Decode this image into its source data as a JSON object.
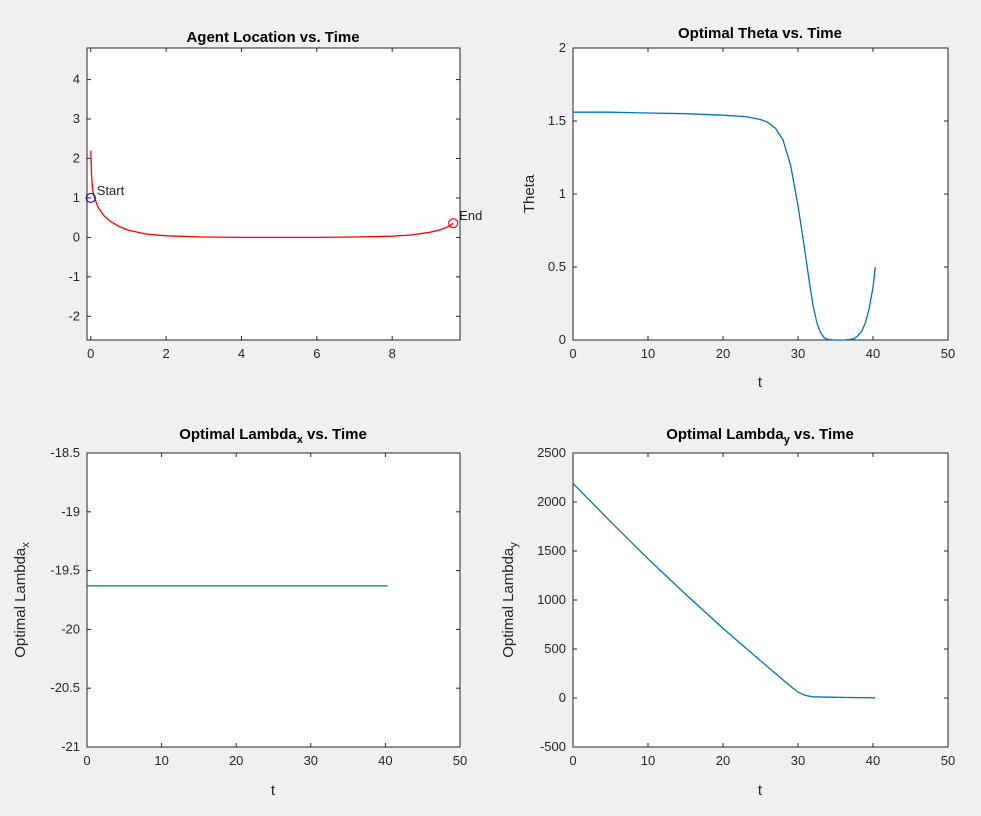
{
  "chart_data": [
    {
      "type": "line",
      "title": "Agent Location vs. Time",
      "xlabel": "",
      "ylabel": "",
      "xlim": [
        -0.1,
        9.8
      ],
      "ylim": [
        -2.6,
        4.8
      ],
      "xticks": [
        0,
        2,
        4,
        6,
        8
      ],
      "xtick_labels": [
        "0",
        "2",
        "4",
        "6",
        "8"
      ],
      "yticks": [
        -2,
        -1,
        0,
        1,
        2,
        3,
        4
      ],
      "ytick_labels": [
        "-2",
        "-1",
        "0",
        "1",
        "2",
        "3",
        "4"
      ],
      "grid": false,
      "series": [
        {
          "color": "#ff0000",
          "x": [
            0,
            0.02,
            0.05,
            0.1,
            0.2,
            0.35,
            0.5,
            0.75,
            1.0,
            1.5,
            2.0,
            3.0,
            4.0,
            5.0,
            6.0,
            7.0,
            8.0,
            8.5,
            9.0,
            9.3,
            9.5,
            9.62
          ],
          "y": [
            2.2,
            1.6,
            1.2,
            1.0,
            0.75,
            0.55,
            0.42,
            0.28,
            0.18,
            0.08,
            0.04,
            0.01,
            0.0,
            0.0,
            0.0,
            0.01,
            0.03,
            0.06,
            0.13,
            0.2,
            0.28,
            0.36
          ]
        }
      ],
      "annotations": [
        {
          "text": "Start",
          "x": 0,
          "y": 1.0,
          "marker_color": "#0000ff"
        },
        {
          "text": "End",
          "x": 9.62,
          "y": 0.36,
          "marker_color": "#ff0000"
        }
      ]
    },
    {
      "type": "line",
      "title": "Optimal Theta vs. Time",
      "xlabel": "t",
      "ylabel": "Theta",
      "xlim": [
        0,
        50
      ],
      "ylim": [
        0,
        2
      ],
      "xticks": [
        0,
        10,
        20,
        30,
        40,
        50
      ],
      "xtick_labels": [
        "0",
        "10",
        "20",
        "30",
        "40",
        "50"
      ],
      "yticks": [
        0,
        0.5,
        1,
        1.5,
        2
      ],
      "ytick_labels": [
        "0",
        "0.5",
        "1",
        "1.5",
        "2"
      ],
      "grid": false,
      "series": [
        {
          "color": "#0072bd",
          "x": [
            0,
            5,
            10,
            15,
            20,
            23,
            25,
            26,
            27,
            28,
            29,
            30,
            30.5,
            31,
            31.5,
            32,
            32.5,
            33,
            33.5,
            34,
            35,
            36,
            37,
            37.5,
            38,
            38.5,
            39,
            39.5,
            40,
            40.3
          ],
          "y": [
            1.56,
            1.56,
            1.555,
            1.55,
            1.54,
            1.53,
            1.51,
            1.49,
            1.45,
            1.37,
            1.2,
            0.92,
            0.75,
            0.58,
            0.4,
            0.24,
            0.12,
            0.05,
            0.015,
            0.004,
            0.0,
            0.0,
            0.004,
            0.01,
            0.03,
            0.06,
            0.12,
            0.22,
            0.36,
            0.5
          ]
        }
      ]
    },
    {
      "type": "line",
      "title": "Optimal Lambda",
      "title_sub": "x",
      "title_suffix": " vs. Time",
      "xlabel": "t",
      "ylabel": "Optimal Lambda",
      "ylabel_sub": "x",
      "xlim": [
        0,
        50
      ],
      "ylim": [
        -21,
        -18.5
      ],
      "xticks": [
        0,
        10,
        20,
        30,
        40,
        50
      ],
      "xtick_labels": [
        "0",
        "10",
        "20",
        "30",
        "40",
        "50"
      ],
      "yticks": [
        -21,
        -20.5,
        -20,
        -19.5,
        -19,
        -18.5
      ],
      "ytick_labels": [
        "-21",
        "-20.5",
        "-20",
        "-19.5",
        "-19",
        "-18.5"
      ],
      "grid": false,
      "series": [
        {
          "color": "#0072bd",
          "x": [
            0,
            40.3
          ],
          "y": [
            -19.63,
            -19.63
          ]
        }
      ]
    },
    {
      "type": "line",
      "title": "Optimal Lambda",
      "title_sub": "y",
      "title_suffix": " vs. Time",
      "xlabel": "t",
      "ylabel": "Optimal Lambda",
      "ylabel_sub": "y",
      "xlim": [
        0,
        50
      ],
      "ylim": [
        -500,
        2500
      ],
      "xticks": [
        0,
        10,
        20,
        30,
        40,
        50
      ],
      "xtick_labels": [
        "0",
        "10",
        "20",
        "30",
        "40",
        "50"
      ],
      "yticks": [
        -500,
        0,
        500,
        1000,
        1500,
        2000,
        2500
      ],
      "ytick_labels": [
        "-500",
        "0",
        "500",
        "1000",
        "1500",
        "2000",
        "2500"
      ],
      "grid": false,
      "series": [
        {
          "color": "#0072bd",
          "x": [
            0,
            5,
            10,
            15,
            20,
            25,
            27,
            29,
            30,
            31,
            32,
            34,
            36,
            38,
            40,
            40.3
          ],
          "y": [
            2190,
            1800,
            1420,
            1060,
            710,
            380,
            250,
            120,
            60,
            25,
            12,
            8,
            6,
            4,
            2,
            0
          ]
        }
      ]
    }
  ]
}
